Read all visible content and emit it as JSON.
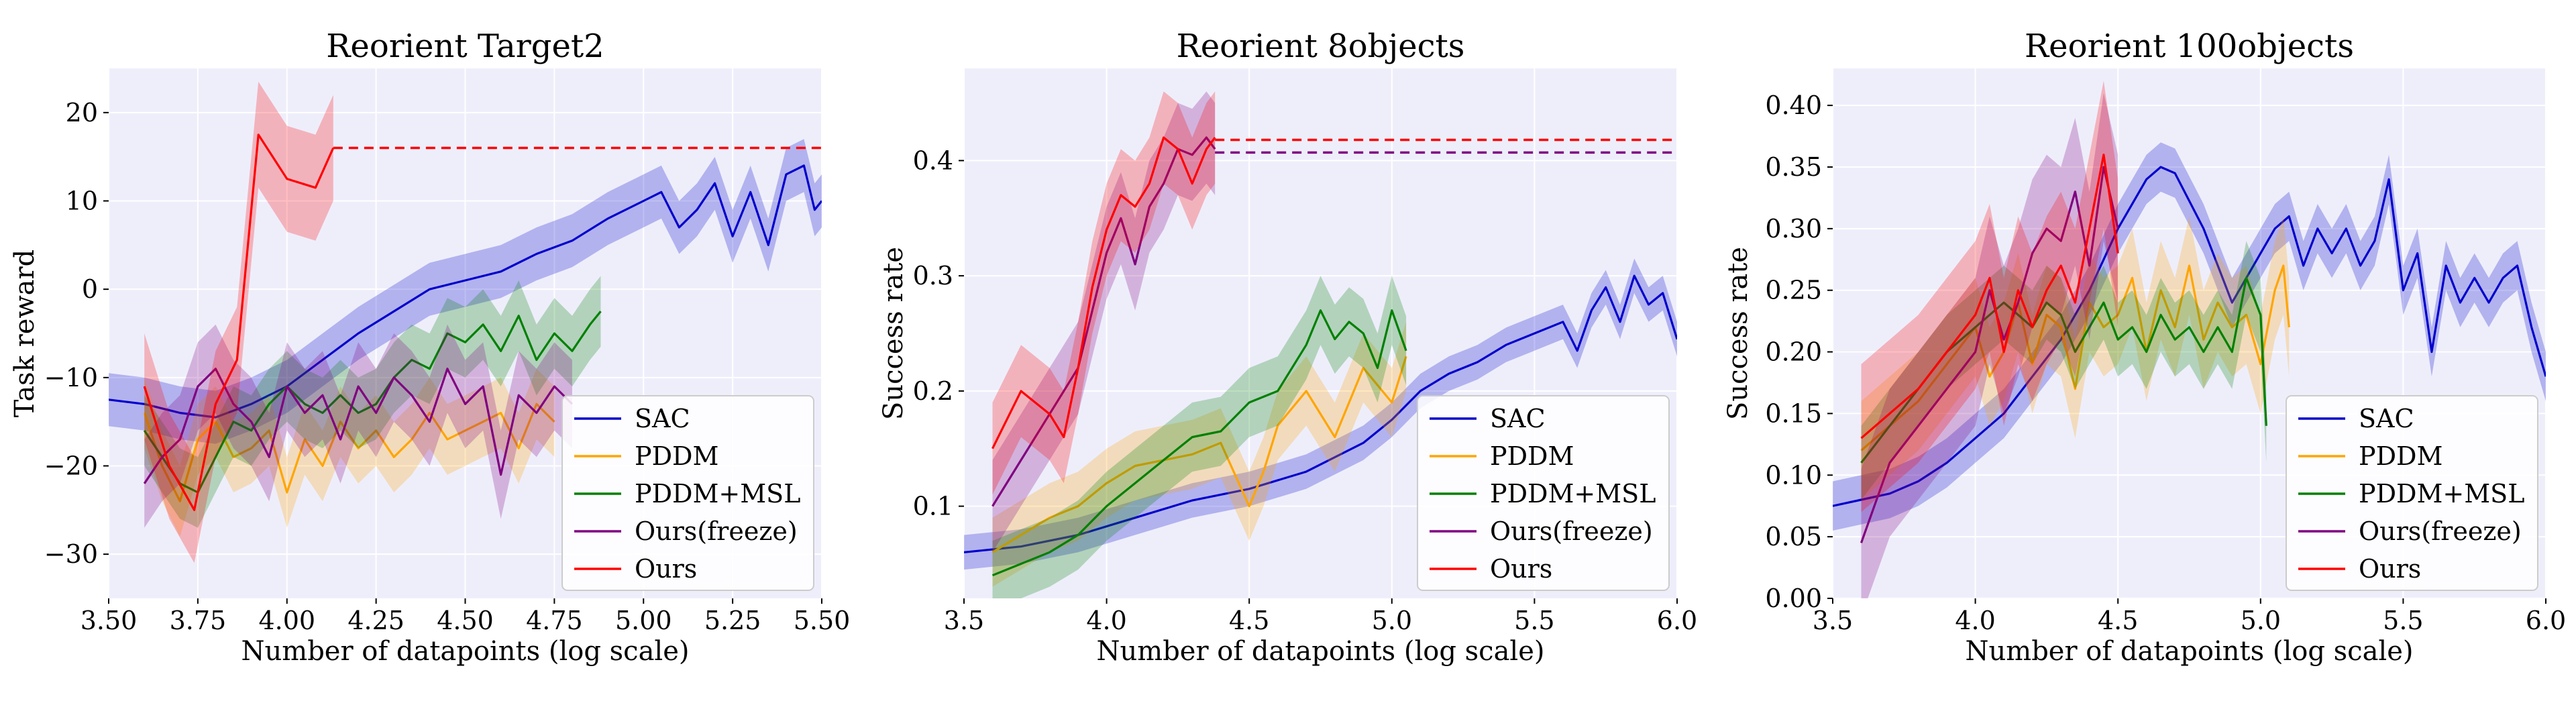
{
  "figure": {
    "legend_entries": [
      {
        "name": "SAC",
        "color": "#0000cc"
      },
      {
        "name": "PDDM",
        "color": "#ffa500"
      },
      {
        "name": "PDDM+MSL",
        "color": "#008000"
      },
      {
        "name": "Ours(freeze)",
        "color": "#800080"
      },
      {
        "name": "Ours",
        "color": "#ff0000"
      }
    ]
  },
  "chart_data": [
    {
      "type": "line",
      "title": "Reorient Target2",
      "xlabel": "Number of datapoints (log scale)",
      "ylabel": "Task reward",
      "xlim": [
        3.5,
        5.5
      ],
      "ylim": [
        -35,
        25
      ],
      "xticks": [
        "3.50",
        "3.75",
        "4.00",
        "4.25",
        "4.50",
        "4.75",
        "5.00",
        "5.25",
        "5.50"
      ],
      "xtick_values": [
        3.5,
        3.75,
        4.0,
        4.25,
        4.5,
        4.75,
        5.0,
        5.25,
        5.5
      ],
      "yticks": [
        "−30",
        "−20",
        "−10",
        "0",
        "10",
        "20"
      ],
      "ytick_values": [
        -30,
        -20,
        -10,
        0,
        10,
        20
      ],
      "grid": true,
      "legend_position": "lower-right",
      "series": [
        {
          "name": "SAC",
          "color": "#0000cc",
          "band": 3,
          "x": [
            3.5,
            3.6,
            3.7,
            3.8,
            3.9,
            4.0,
            4.1,
            4.2,
            4.3,
            4.4,
            4.5,
            4.6,
            4.7,
            4.8,
            4.9,
            5.0,
            5.05,
            5.1,
            5.15,
            5.2,
            5.25,
            5.3,
            5.35,
            5.4,
            5.45,
            5.48,
            5.5
          ],
          "y": [
            -12.5,
            -13,
            -14,
            -14.5,
            -13,
            -11,
            -8,
            -5,
            -2.5,
            0,
            1,
            2,
            4,
            5.5,
            8,
            10,
            11,
            7,
            9,
            12,
            6,
            11,
            5,
            13,
            14,
            9,
            10
          ]
        },
        {
          "name": "PDDM",
          "color": "#ffa500",
          "band": 4,
          "x": [
            3.6,
            3.65,
            3.7,
            3.75,
            3.8,
            3.85,
            3.9,
            3.95,
            4.0,
            4.05,
            4.1,
            4.15,
            4.2,
            4.25,
            4.3,
            4.35,
            4.4,
            4.45,
            4.5,
            4.55,
            4.6,
            4.65,
            4.7,
            4.75
          ],
          "y": [
            -14,
            -20,
            -24,
            -17,
            -15,
            -19,
            -18,
            -16,
            -23,
            -17,
            -20,
            -15,
            -18,
            -16,
            -19,
            -17,
            -14,
            -17,
            -16,
            -15,
            -14,
            -18,
            -13,
            -15
          ]
        },
        {
          "name": "PDDM+MSL",
          "color": "#008000",
          "band": 4,
          "x": [
            3.6,
            3.65,
            3.7,
            3.75,
            3.8,
            3.85,
            3.9,
            3.95,
            4.0,
            4.05,
            4.1,
            4.15,
            4.2,
            4.25,
            4.3,
            4.35,
            4.4,
            4.45,
            4.5,
            4.55,
            4.6,
            4.65,
            4.7,
            4.75,
            4.8,
            4.85,
            4.88
          ],
          "y": [
            -16,
            -19,
            -22,
            -23,
            -19,
            -15,
            -16,
            -13,
            -11,
            -13,
            -14,
            -12,
            -14,
            -13,
            -10,
            -8,
            -9,
            -5,
            -6,
            -4,
            -7,
            -3,
            -8,
            -5,
            -7,
            -4,
            -2.5
          ]
        },
        {
          "name": "Ours(freeze)",
          "color": "#800080",
          "band": 5,
          "x": [
            3.6,
            3.65,
            3.7,
            3.75,
            3.8,
            3.85,
            3.9,
            3.95,
            4.0,
            4.05,
            4.1,
            4.15,
            4.2,
            4.25,
            4.3,
            4.35,
            4.4,
            4.45,
            4.5,
            4.55,
            4.6,
            4.65,
            4.7,
            4.75,
            4.8
          ],
          "y": [
            -22,
            -19,
            -17,
            -11,
            -9,
            -13,
            -15,
            -19,
            -11,
            -14,
            -12,
            -17,
            -11,
            -14,
            -10,
            -12,
            -15,
            -9,
            -13,
            -11,
            -21,
            -12,
            -14,
            -11,
            -13
          ]
        },
        {
          "name": "Ours",
          "color": "#ff0000",
          "band": 6,
          "x": [
            3.6,
            3.67,
            3.74,
            3.8,
            3.86,
            3.92,
            4.0,
            4.08,
            4.13
          ],
          "y": [
            -11,
            -20,
            -25,
            -13,
            -8,
            17.5,
            12.5,
            11.5,
            16
          ]
        }
      ],
      "reference_lines": [
        {
          "color": "#ff0000",
          "value": 16,
          "from": 4.13,
          "to": 5.5
        }
      ]
    },
    {
      "type": "line",
      "title": "Reorient 8objects",
      "xlabel": "Number of datapoints (log scale)",
      "ylabel": "Success rate",
      "xlim": [
        3.5,
        6.0
      ],
      "ylim": [
        0.02,
        0.48
      ],
      "xticks": [
        "3.5",
        "4.0",
        "4.5",
        "5.0",
        "5.5",
        "6.0"
      ],
      "xtick_values": [
        3.5,
        4.0,
        4.5,
        5.0,
        5.5,
        6.0
      ],
      "yticks": [
        "0.1",
        "0.2",
        "0.3",
        "0.4"
      ],
      "ytick_values": [
        0.1,
        0.2,
        0.3,
        0.4
      ],
      "grid": true,
      "legend_position": "lower-right",
      "series": [
        {
          "name": "SAC",
          "color": "#0000cc",
          "band": 0.015,
          "x": [
            3.5,
            3.7,
            3.9,
            4.1,
            4.3,
            4.5,
            4.7,
            4.9,
            5.0,
            5.1,
            5.2,
            5.3,
            5.4,
            5.5,
            5.6,
            5.65,
            5.7,
            5.75,
            5.8,
            5.85,
            5.9,
            5.95,
            6.0
          ],
          "y": [
            0.06,
            0.065,
            0.075,
            0.09,
            0.105,
            0.115,
            0.13,
            0.155,
            0.175,
            0.2,
            0.215,
            0.225,
            0.24,
            0.25,
            0.26,
            0.235,
            0.27,
            0.29,
            0.26,
            0.3,
            0.275,
            0.285,
            0.245
          ]
        },
        {
          "name": "PDDM",
          "color": "#ffa500",
          "band": 0.03,
          "x": [
            3.6,
            3.7,
            3.8,
            3.9,
            4.0,
            4.1,
            4.2,
            4.3,
            4.4,
            4.5,
            4.55,
            4.6,
            4.7,
            4.8,
            4.9,
            5.0,
            5.05
          ],
          "y": [
            0.06,
            0.075,
            0.09,
            0.1,
            0.12,
            0.135,
            0.14,
            0.145,
            0.155,
            0.1,
            0.13,
            0.17,
            0.2,
            0.16,
            0.22,
            0.19,
            0.23
          ]
        },
        {
          "name": "PDDM+MSL",
          "color": "#008000",
          "band": 0.03,
          "x": [
            3.6,
            3.7,
            3.8,
            3.9,
            4.0,
            4.1,
            4.2,
            4.3,
            4.4,
            4.5,
            4.6,
            4.7,
            4.75,
            4.8,
            4.85,
            4.9,
            4.95,
            5.0,
            5.05
          ],
          "y": [
            0.04,
            0.05,
            0.06,
            0.075,
            0.1,
            0.12,
            0.14,
            0.16,
            0.165,
            0.19,
            0.2,
            0.24,
            0.27,
            0.245,
            0.26,
            0.25,
            0.22,
            0.27,
            0.235
          ]
        },
        {
          "name": "Ours(freeze)",
          "color": "#800080",
          "band": 0.04,
          "x": [
            3.6,
            3.7,
            3.8,
            3.9,
            3.95,
            4.0,
            4.05,
            4.1,
            4.15,
            4.2,
            4.25,
            4.3,
            4.35,
            4.38
          ],
          "y": [
            0.1,
            0.14,
            0.18,
            0.22,
            0.27,
            0.32,
            0.35,
            0.31,
            0.36,
            0.38,
            0.41,
            0.405,
            0.42,
            0.41
          ]
        },
        {
          "name": "Ours",
          "color": "#ff0000",
          "band": 0.04,
          "x": [
            3.6,
            3.7,
            3.8,
            3.85,
            3.9,
            3.95,
            4.0,
            4.05,
            4.1,
            4.15,
            4.2,
            4.25,
            4.3,
            4.35,
            4.38
          ],
          "y": [
            0.15,
            0.2,
            0.18,
            0.16,
            0.22,
            0.29,
            0.34,
            0.37,
            0.36,
            0.38,
            0.42,
            0.41,
            0.38,
            0.41,
            0.42
          ]
        }
      ],
      "reference_lines": [
        {
          "color": "#ff0000",
          "value": 0.418,
          "from": 4.38,
          "to": 6.0
        },
        {
          "color": "#800080",
          "value": 0.407,
          "from": 4.38,
          "to": 6.0
        }
      ]
    },
    {
      "type": "line",
      "title": "Reorient 100objects",
      "xlabel": "Number of datapoints (log scale)",
      "ylabel": "Success rate",
      "xlim": [
        3.5,
        6.0
      ],
      "ylim": [
        0.0,
        0.43
      ],
      "xticks": [
        "3.5",
        "4.0",
        "4.5",
        "5.0",
        "5.5",
        "6.0"
      ],
      "xtick_values": [
        3.5,
        4.0,
        4.5,
        5.0,
        5.5,
        6.0
      ],
      "yticks": [
        "0.00",
        "0.05",
        "0.10",
        "0.15",
        "0.20",
        "0.25",
        "0.30",
        "0.35",
        "0.40"
      ],
      "ytick_values": [
        0.0,
        0.05,
        0.1,
        0.15,
        0.2,
        0.25,
        0.3,
        0.35,
        0.4
      ],
      "grid": true,
      "legend_position": "lower-right",
      "series": [
        {
          "name": "SAC",
          "color": "#0000cc",
          "band": 0.02,
          "x": [
            3.5,
            3.6,
            3.7,
            3.8,
            3.9,
            4.0,
            4.1,
            4.2,
            4.3,
            4.4,
            4.5,
            4.6,
            4.65,
            4.7,
            4.8,
            4.9,
            5.0,
            5.05,
            5.1,
            5.15,
            5.2,
            5.25,
            5.3,
            5.35,
            5.4,
            5.45,
            5.5,
            5.55,
            5.6,
            5.65,
            5.7,
            5.75,
            5.8,
            5.85,
            5.9,
            5.95,
            6.0
          ],
          "y": [
            0.075,
            0.08,
            0.085,
            0.095,
            0.11,
            0.13,
            0.15,
            0.18,
            0.21,
            0.25,
            0.3,
            0.34,
            0.35,
            0.345,
            0.3,
            0.24,
            0.28,
            0.3,
            0.31,
            0.27,
            0.3,
            0.28,
            0.3,
            0.27,
            0.29,
            0.34,
            0.25,
            0.28,
            0.2,
            0.27,
            0.24,
            0.26,
            0.24,
            0.26,
            0.27,
            0.22,
            0.18
          ]
        },
        {
          "name": "PDDM",
          "color": "#ffa500",
          "band": 0.04,
          "x": [
            3.6,
            3.7,
            3.8,
            3.9,
            4.0,
            4.05,
            4.1,
            4.15,
            4.2,
            4.25,
            4.3,
            4.35,
            4.4,
            4.45,
            4.5,
            4.55,
            4.6,
            4.65,
            4.7,
            4.75,
            4.8,
            4.85,
            4.9,
            4.95,
            5.0,
            5.05,
            5.08,
            5.1
          ],
          "y": [
            0.12,
            0.14,
            0.16,
            0.19,
            0.22,
            0.18,
            0.2,
            0.24,
            0.19,
            0.23,
            0.22,
            0.17,
            0.24,
            0.22,
            0.23,
            0.26,
            0.2,
            0.25,
            0.22,
            0.27,
            0.21,
            0.24,
            0.22,
            0.23,
            0.19,
            0.25,
            0.27,
            0.22
          ]
        },
        {
          "name": "PDDM+MSL",
          "color": "#008000",
          "band": 0.03,
          "x": [
            3.6,
            3.7,
            3.8,
            3.9,
            4.0,
            4.05,
            4.1,
            4.15,
            4.2,
            4.25,
            4.3,
            4.35,
            4.4,
            4.45,
            4.5,
            4.55,
            4.6,
            4.65,
            4.7,
            4.75,
            4.8,
            4.85,
            4.9,
            4.95,
            5.0,
            5.02
          ],
          "y": [
            0.11,
            0.14,
            0.17,
            0.2,
            0.22,
            0.23,
            0.24,
            0.23,
            0.22,
            0.24,
            0.23,
            0.2,
            0.22,
            0.24,
            0.21,
            0.22,
            0.2,
            0.23,
            0.21,
            0.22,
            0.2,
            0.22,
            0.2,
            0.26,
            0.23,
            0.14
          ]
        },
        {
          "name": "Ours(freeze)",
          "color": "#800080",
          "band": 0.06,
          "x": [
            3.6,
            3.7,
            3.8,
            3.9,
            4.0,
            4.05,
            4.1,
            4.15,
            4.2,
            4.25,
            4.3,
            4.35,
            4.4,
            4.45,
            4.5
          ],
          "y": [
            0.045,
            0.11,
            0.14,
            0.17,
            0.2,
            0.25,
            0.21,
            0.24,
            0.28,
            0.3,
            0.29,
            0.33,
            0.27,
            0.35,
            0.3
          ]
        },
        {
          "name": "Ours",
          "color": "#ff0000",
          "band": 0.06,
          "x": [
            3.6,
            3.7,
            3.8,
            3.9,
            4.0,
            4.05,
            4.1,
            4.15,
            4.2,
            4.25,
            4.3,
            4.35,
            4.4,
            4.45,
            4.5
          ],
          "y": [
            0.13,
            0.15,
            0.17,
            0.2,
            0.23,
            0.26,
            0.2,
            0.25,
            0.22,
            0.25,
            0.27,
            0.24,
            0.3,
            0.36,
            0.28
          ]
        }
      ],
      "reference_lines": []
    }
  ]
}
